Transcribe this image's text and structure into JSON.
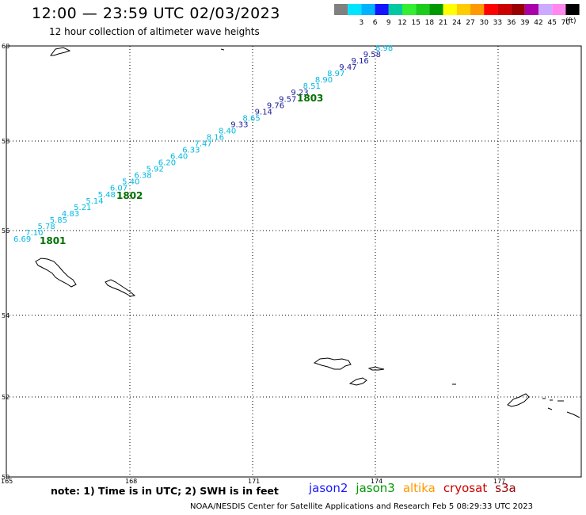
{
  "header": {
    "title": "12:00 — 23:59 UTC 02/03/2023",
    "subtitle": "12 hour collection of altimeter wave heights"
  },
  "legend": {
    "unit": "(ft)",
    "bins": [
      {
        "label": "",
        "color": "#808080"
      },
      {
        "label": "3",
        "color": "#00e5ff"
      },
      {
        "label": "6",
        "color": "#00b2ff"
      },
      {
        "label": "9",
        "color": "#1414ff"
      },
      {
        "label": "12",
        "color": "#00c8a0"
      },
      {
        "label": "15",
        "color": "#33ee33"
      },
      {
        "label": "18",
        "color": "#1ccc1c"
      },
      {
        "label": "21",
        "color": "#009900"
      },
      {
        "label": "24",
        "color": "#ffff00"
      },
      {
        "label": "27",
        "color": "#ffcc00"
      },
      {
        "label": "30",
        "color": "#ff9900"
      },
      {
        "label": "33",
        "color": "#ff0000"
      },
      {
        "label": "36",
        "color": "#cc0000"
      },
      {
        "label": "39",
        "color": "#990000"
      },
      {
        "label": "42",
        "color": "#aa00aa"
      },
      {
        "label": "45",
        "color": "#ccaaff"
      },
      {
        "label": "70",
        "color": "#ff88ee"
      },
      {
        "label": "",
        "color": "#000000"
      }
    ]
  },
  "map": {
    "lat_ticks": [
      "60",
      "58",
      "56",
      "54",
      "52",
      "50"
    ],
    "lon_ticks": [
      "165",
      "168",
      "171",
      "174",
      "177"
    ],
    "colors": {
      "light": "#00b8e0",
      "dark": "#1a1a9a",
      "time": "#007000"
    }
  },
  "track": {
    "points": [
      {
        "v": "6.69",
        "c": "light"
      },
      {
        "v": "7.10",
        "c": "light"
      },
      {
        "v": "5.78",
        "c": "light"
      },
      {
        "v": "5.85",
        "c": "light"
      },
      {
        "v": "4.83",
        "c": "light"
      },
      {
        "v": "5.21",
        "c": "light"
      },
      {
        "v": "5.14",
        "c": "light"
      },
      {
        "v": "5.48",
        "c": "light"
      },
      {
        "v": "6.07",
        "c": "light"
      },
      {
        "v": "5.40",
        "c": "light"
      },
      {
        "v": "6.38",
        "c": "light"
      },
      {
        "v": "5.92",
        "c": "light"
      },
      {
        "v": "6.20",
        "c": "light"
      },
      {
        "v": "6.40",
        "c": "light"
      },
      {
        "v": "6.33",
        "c": "light"
      },
      {
        "v": "7.47",
        "c": "light"
      },
      {
        "v": "8.16",
        "c": "light"
      },
      {
        "v": "8.40",
        "c": "light"
      },
      {
        "v": "9.33",
        "c": "dark"
      },
      {
        "v": "8.65",
        "c": "light"
      },
      {
        "v": "9.14",
        "c": "dark"
      },
      {
        "v": "9.76",
        "c": "dark"
      },
      {
        "v": "9.57",
        "c": "dark"
      },
      {
        "v": "9.23",
        "c": "dark"
      },
      {
        "v": "8.51",
        "c": "light"
      },
      {
        "v": "8.90",
        "c": "light"
      },
      {
        "v": "8.97",
        "c": "light"
      },
      {
        "v": "9.47",
        "c": "dark"
      },
      {
        "v": "9.16",
        "c": "dark"
      },
      {
        "v": "9.58",
        "c": "dark"
      },
      {
        "v": "8.98",
        "c": "light"
      }
    ],
    "time_labels": [
      "1801",
      "1802",
      "1803"
    ]
  },
  "footer": {
    "note": "note: 1) Time is in UTC; 2) SWH is in feet",
    "satellites": [
      {
        "name": "jason2",
        "color": "#1a1aff"
      },
      {
        "name": "jason3",
        "color": "#009900"
      },
      {
        "name": "altika",
        "color": "#ff9900"
      },
      {
        "name": "cryosat",
        "color": "#cc0000"
      },
      {
        "name": "s3a",
        "color": "#990000"
      }
    ],
    "credit": "NOAA/NESDIS Center for Satellite Applications and Research   Feb  5 08:29:33 UTC 2023"
  }
}
